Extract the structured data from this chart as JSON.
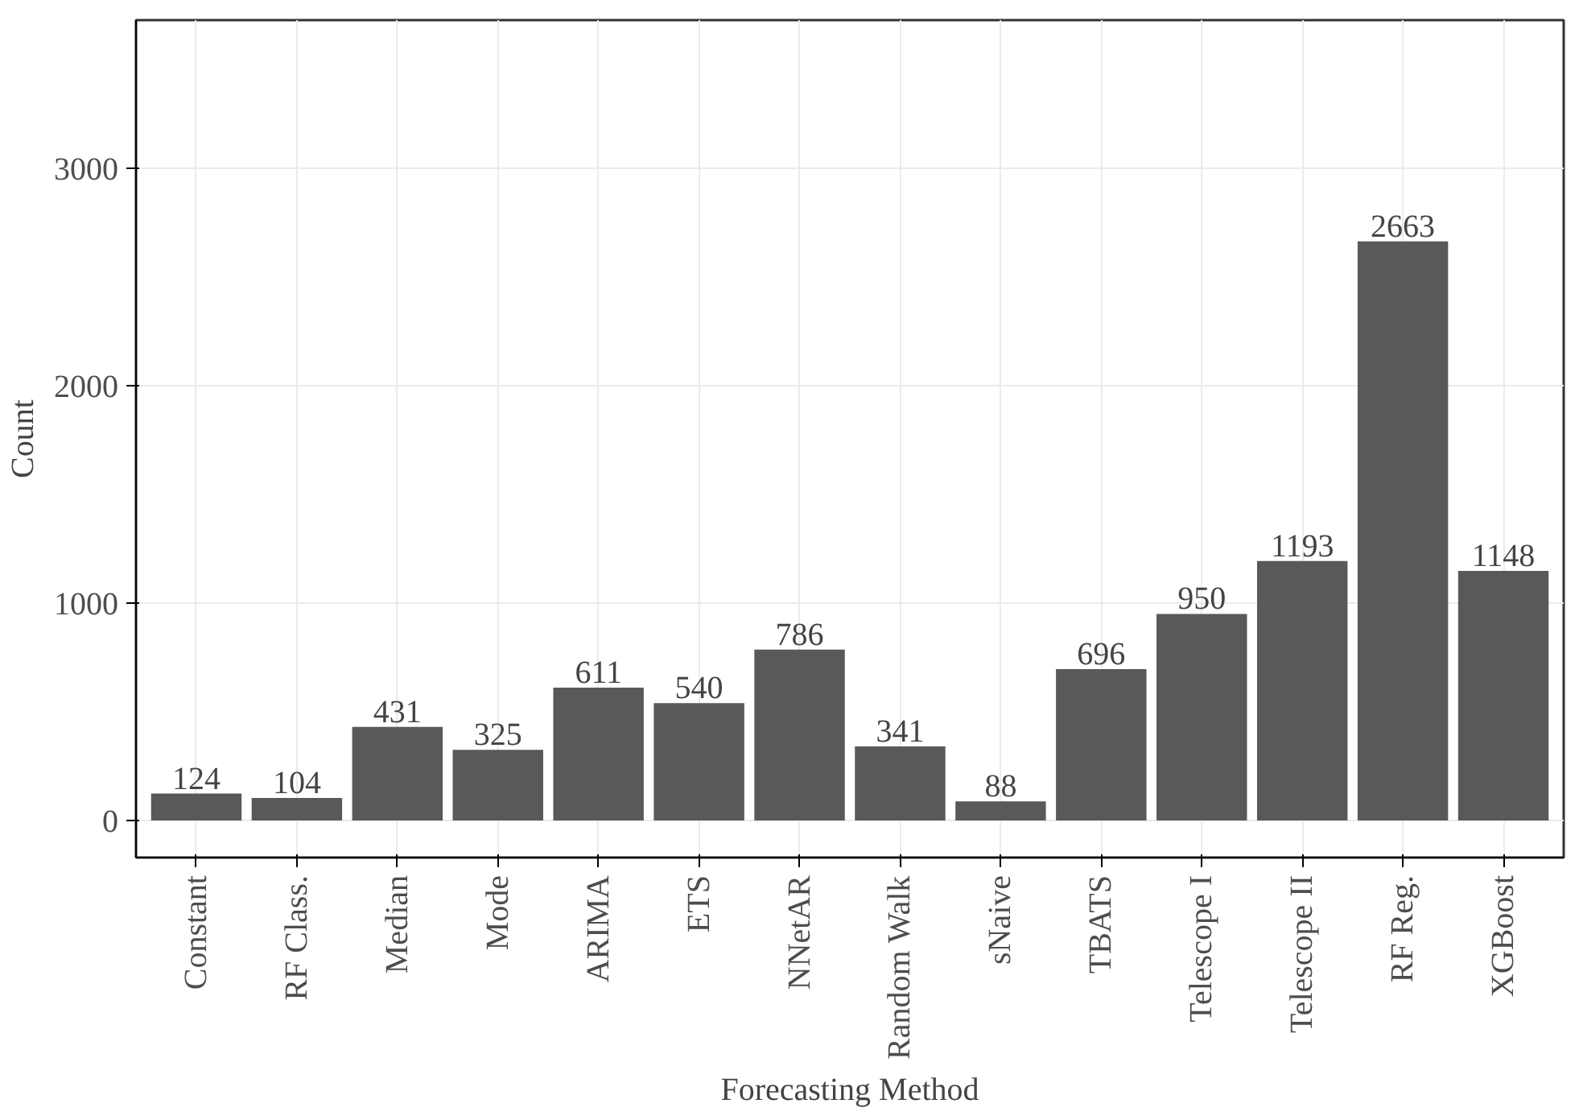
{
  "chart_data": {
    "type": "bar",
    "xlabel": "Forecasting Method",
    "ylabel": "Count",
    "categories": [
      "Constant",
      "RF Class.",
      "Median",
      "Mode",
      "ARIMA",
      "ETS",
      "NNetAR",
      "Random Walk",
      "sNaive",
      "TBATS",
      "Telescope I",
      "Telescope II",
      "RF Reg.",
      "XGBoost"
    ],
    "values": [
      124,
      104,
      431,
      325,
      611,
      540,
      786,
      341,
      88,
      696,
      950,
      1193,
      2663,
      1148
    ],
    "color": "#595959",
    "ylim": [
      -170,
      3680
    ],
    "yticks": [
      0,
      1000,
      2000,
      3000
    ],
    "grid": true,
    "data_labels": true
  }
}
